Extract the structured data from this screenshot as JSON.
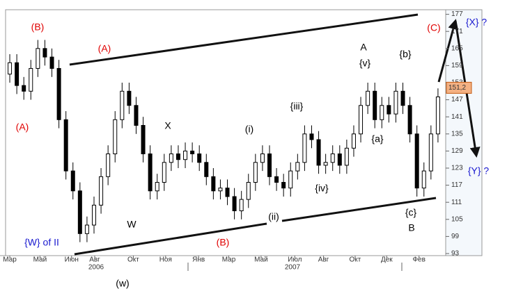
{
  "chart_data": {
    "type": "candlestick",
    "x": [
      0,
      1,
      2,
      3,
      4,
      5,
      6,
      7,
      8,
      9,
      10,
      11,
      12,
      13,
      14,
      15,
      16,
      17,
      18,
      19,
      20,
      21,
      22,
      23,
      24,
      25,
      26,
      27,
      28,
      29,
      30,
      31,
      32,
      33,
      34,
      35,
      36,
      37,
      38,
      39,
      40,
      41,
      42,
      43,
      44,
      45,
      46,
      47,
      48,
      49,
      50,
      51,
      52,
      53,
      54,
      55,
      56,
      57,
      58,
      59,
      60,
      61
    ],
    "open": [
      156,
      160,
      152,
      150,
      158,
      165,
      162,
      158,
      140,
      122,
      115,
      100,
      103,
      110,
      120,
      128,
      140,
      150,
      145,
      138,
      128,
      115,
      118,
      125,
      128,
      126,
      129,
      128,
      125,
      120,
      115,
      116,
      113,
      108,
      112,
      118,
      125,
      128,
      120,
      118,
      116,
      122,
      125,
      135,
      133,
      124,
      125,
      128,
      124,
      130,
      135,
      145,
      150,
      140,
      145,
      142,
      150,
      145,
      135,
      116,
      122,
      135
    ],
    "high": [
      163,
      163,
      155,
      161,
      168,
      168,
      165,
      161,
      143,
      125,
      118,
      106,
      113,
      123,
      131,
      143,
      153,
      153,
      148,
      141,
      131,
      121,
      128,
      131,
      131,
      132,
      132,
      131,
      128,
      123,
      119,
      119,
      116,
      115,
      121,
      128,
      131,
      131,
      123,
      121,
      125,
      128,
      138,
      138,
      136,
      128,
      131,
      131,
      133,
      138,
      148,
      153,
      153,
      148,
      148,
      153,
      153,
      148,
      138,
      125,
      138,
      151
    ],
    "low": [
      153,
      149,
      147,
      147,
      155,
      159,
      155,
      137,
      119,
      112,
      97,
      97,
      100,
      107,
      117,
      125,
      137,
      142,
      135,
      125,
      112,
      112,
      115,
      122,
      123,
      123,
      125,
      122,
      117,
      112,
      112,
      110,
      105,
      105,
      109,
      115,
      122,
      117,
      115,
      113,
      113,
      119,
      122,
      130,
      121,
      121,
      122,
      121,
      121,
      127,
      132,
      142,
      137,
      137,
      139,
      139,
      142,
      132,
      113,
      113,
      119,
      132
    ],
    "close": [
      160,
      152,
      150,
      158,
      165,
      162,
      158,
      140,
      122,
      115,
      100,
      103,
      110,
      120,
      128,
      140,
      150,
      145,
      138,
      128,
      115,
      118,
      125,
      128,
      126,
      129,
      128,
      125,
      120,
      115,
      116,
      113,
      108,
      112,
      118,
      125,
      128,
      120,
      118,
      116,
      122,
      125,
      135,
      133,
      124,
      125,
      128,
      124,
      130,
      135,
      145,
      150,
      140,
      145,
      142,
      150,
      145,
      135,
      116,
      122,
      135,
      148
    ],
    "up_color": "#ffffff",
    "down_color": "#000000",
    "ylim": [
      93,
      177
    ],
    "yticks": [
      93,
      99,
      105,
      111,
      117,
      123,
      129,
      135,
      141,
      147,
      153,
      159,
      165,
      171,
      177
    ],
    "xlim": [
      -0.5,
      62
    ],
    "xticks": [
      {
        "value": 0,
        "label": "Мар"
      },
      {
        "value": 4.3,
        "label": "Май"
      },
      {
        "value": 8.8,
        "label": "Июн"
      },
      {
        "value": 12.1,
        "label": "Авг"
      },
      {
        "value": 17.6,
        "label": "Окт"
      },
      {
        "value": 22.2,
        "label": "Ноя"
      },
      {
        "value": 26.9,
        "label": "Янв"
      },
      {
        "value": 31.2,
        "label": "Мар"
      },
      {
        "value": 35.8,
        "label": "Май"
      },
      {
        "value": 40.6,
        "label": "Июл"
      },
      {
        "value": 44.7,
        "label": "Авг"
      },
      {
        "value": 49.2,
        "label": "Окт"
      },
      {
        "value": 53.7,
        "label": "Дек"
      },
      {
        "value": 58.3,
        "label": "Фев"
      }
    ],
    "years": [
      "2006",
      "2007"
    ],
    "last_price": 151.2,
    "last_price_label": "151,2",
    "annotations": [
      {
        "text": "(B)",
        "color": "#e00000"
      },
      {
        "text": "(A)",
        "color": "#e00000"
      },
      {
        "text": "(A)",
        "color": "#e00000"
      },
      {
        "text": "X",
        "color": "#000000"
      },
      {
        "text": "W",
        "color": "#000000"
      },
      {
        "text": "(i)",
        "color": "#000000"
      },
      {
        "text": "{iii}",
        "color": "#000000"
      },
      {
        "text": "(ii)",
        "color": "#000000"
      },
      {
        "text": "{iv}",
        "color": "#000000"
      },
      {
        "text": "A",
        "color": "#000000"
      },
      {
        "text": "{v}",
        "color": "#000000"
      },
      {
        "text": "{a}",
        "color": "#000000"
      },
      {
        "text": "{b}",
        "color": "#000000"
      },
      {
        "text": "{c}",
        "color": "#000000"
      },
      {
        "text": "B",
        "color": "#000000"
      },
      {
        "text": "(C)",
        "color": "#e00000"
      },
      {
        "text": "(B)",
        "color": "#e00000"
      },
      {
        "text": "{W}  of II",
        "color": "#1a1ad0"
      },
      {
        "text": "(w)",
        "color": "#000000"
      },
      {
        "text": "{X} ?",
        "color": "#1a1ad0"
      },
      {
        "text": "{Y} ?",
        "color": "#1a1ad0"
      }
    ]
  }
}
